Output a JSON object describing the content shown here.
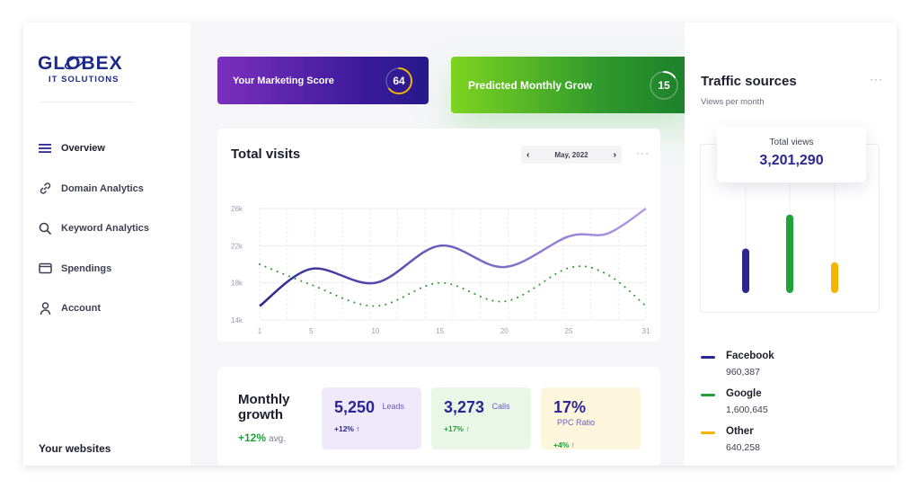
{
  "brand": {
    "logo_text": "GLOBEX",
    "logo_sub": "IT SOLUTIONS",
    "color": "#1d2a8a"
  },
  "sidebar": {
    "items": [
      {
        "label": "Overview",
        "icon": "menu-icon",
        "active": true
      },
      {
        "label": "Domain Analytics",
        "icon": "link-icon",
        "active": false
      },
      {
        "label": "Keyword Analytics",
        "icon": "search-icon",
        "active": false
      },
      {
        "label": "Spendings",
        "icon": "wallet-icon",
        "active": false
      },
      {
        "label": "Account",
        "icon": "user-icon",
        "active": false
      }
    ],
    "footer_label": "Your websites"
  },
  "scores": {
    "marketing": {
      "label": "Your Marketing Score",
      "value": "64",
      "fraction": 0.64
    },
    "growth": {
      "label": "Predicted Monthly Grow",
      "value": "15",
      "fraction": 0.15
    }
  },
  "visits": {
    "title": "Total visits",
    "date": "May, 2022",
    "prev_icon": "chevron-left-icon",
    "next_icon": "chevron-right-icon",
    "more": "···"
  },
  "chart_data": {
    "type": "line",
    "title": "Total visits",
    "x_ticks": [
      1,
      5,
      10,
      15,
      20,
      25,
      31
    ],
    "y_ticks": [
      "14k",
      "18k",
      "22k",
      "26k"
    ],
    "ylim": [
      14000,
      26000
    ],
    "xlim": [
      1,
      31
    ],
    "grid": true,
    "series": [
      {
        "style": "solid",
        "color": "#6b4fc0",
        "x": [
          1,
          5,
          10,
          15,
          20,
          25,
          28,
          31
        ],
        "y": [
          15500,
          19500,
          18000,
          22000,
          19700,
          23000,
          23300,
          26000
        ]
      },
      {
        "style": "dotted",
        "color": "#2f9a2c",
        "x": [
          1,
          5,
          10,
          15,
          20,
          25,
          28,
          31
        ],
        "y": [
          20000,
          17800,
          15500,
          18000,
          16000,
          19600,
          18900,
          15500
        ]
      }
    ]
  },
  "growth": {
    "title": "Monthly growth",
    "avg_value": "+12%",
    "avg_label": "avg.",
    "metrics": [
      {
        "value": "5,250",
        "label": "Leads",
        "change": "+12%",
        "arrow": "↑"
      },
      {
        "value": "3,273",
        "label": "Calls",
        "change": "+17%",
        "arrow": "↑"
      },
      {
        "value": "17%",
        "label": "PPC Ratio",
        "change": "+4%",
        "arrow": "↑"
      }
    ]
  },
  "traffic": {
    "title": "Traffic sources",
    "subtitle": "Views per month",
    "more": "···",
    "total_label": "Total views",
    "total_value": "3,201,290",
    "bar_fractions": [
      0.55,
      0.97,
      0.38
    ],
    "sources": [
      {
        "name": "Facebook",
        "value": "960,387",
        "color": "#2c2594"
      },
      {
        "name": "Google",
        "value": "1,600,645",
        "color": "#22a03a"
      },
      {
        "name": "Other",
        "value": "640,258",
        "color": "#f4b400"
      }
    ]
  }
}
